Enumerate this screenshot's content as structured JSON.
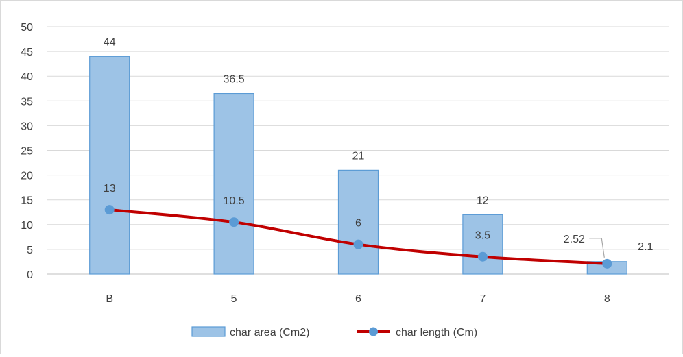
{
  "chart_data": {
    "type": "bar",
    "title": "",
    "xlabel": "",
    "ylabel": "",
    "categories": [
      "B",
      "5",
      "6",
      "7",
      "8"
    ],
    "ylim": [
      0,
      50
    ],
    "yticks": [
      0,
      5,
      10,
      15,
      20,
      25,
      30,
      35,
      40,
      45,
      50
    ],
    "grid": true,
    "legend": "bottom",
    "series": [
      {
        "name": "char area (Cm2)",
        "kind": "bar",
        "values": [
          44,
          36.5,
          21,
          12,
          2.52
        ],
        "labels": [
          "44",
          "36.5",
          "21",
          "12",
          "2.52"
        ],
        "color": "#9dc3e6",
        "border_color": "#5b9bd5"
      },
      {
        "name": "char length (Cm)",
        "kind": "line",
        "values": [
          13,
          10.5,
          6,
          3.5,
          2.1
        ],
        "labels": [
          "13",
          "10.5",
          "6",
          "3.5",
          "2.1"
        ],
        "color": "#c00000",
        "marker_color": "#5b9bd5",
        "smooth": true
      }
    ]
  }
}
